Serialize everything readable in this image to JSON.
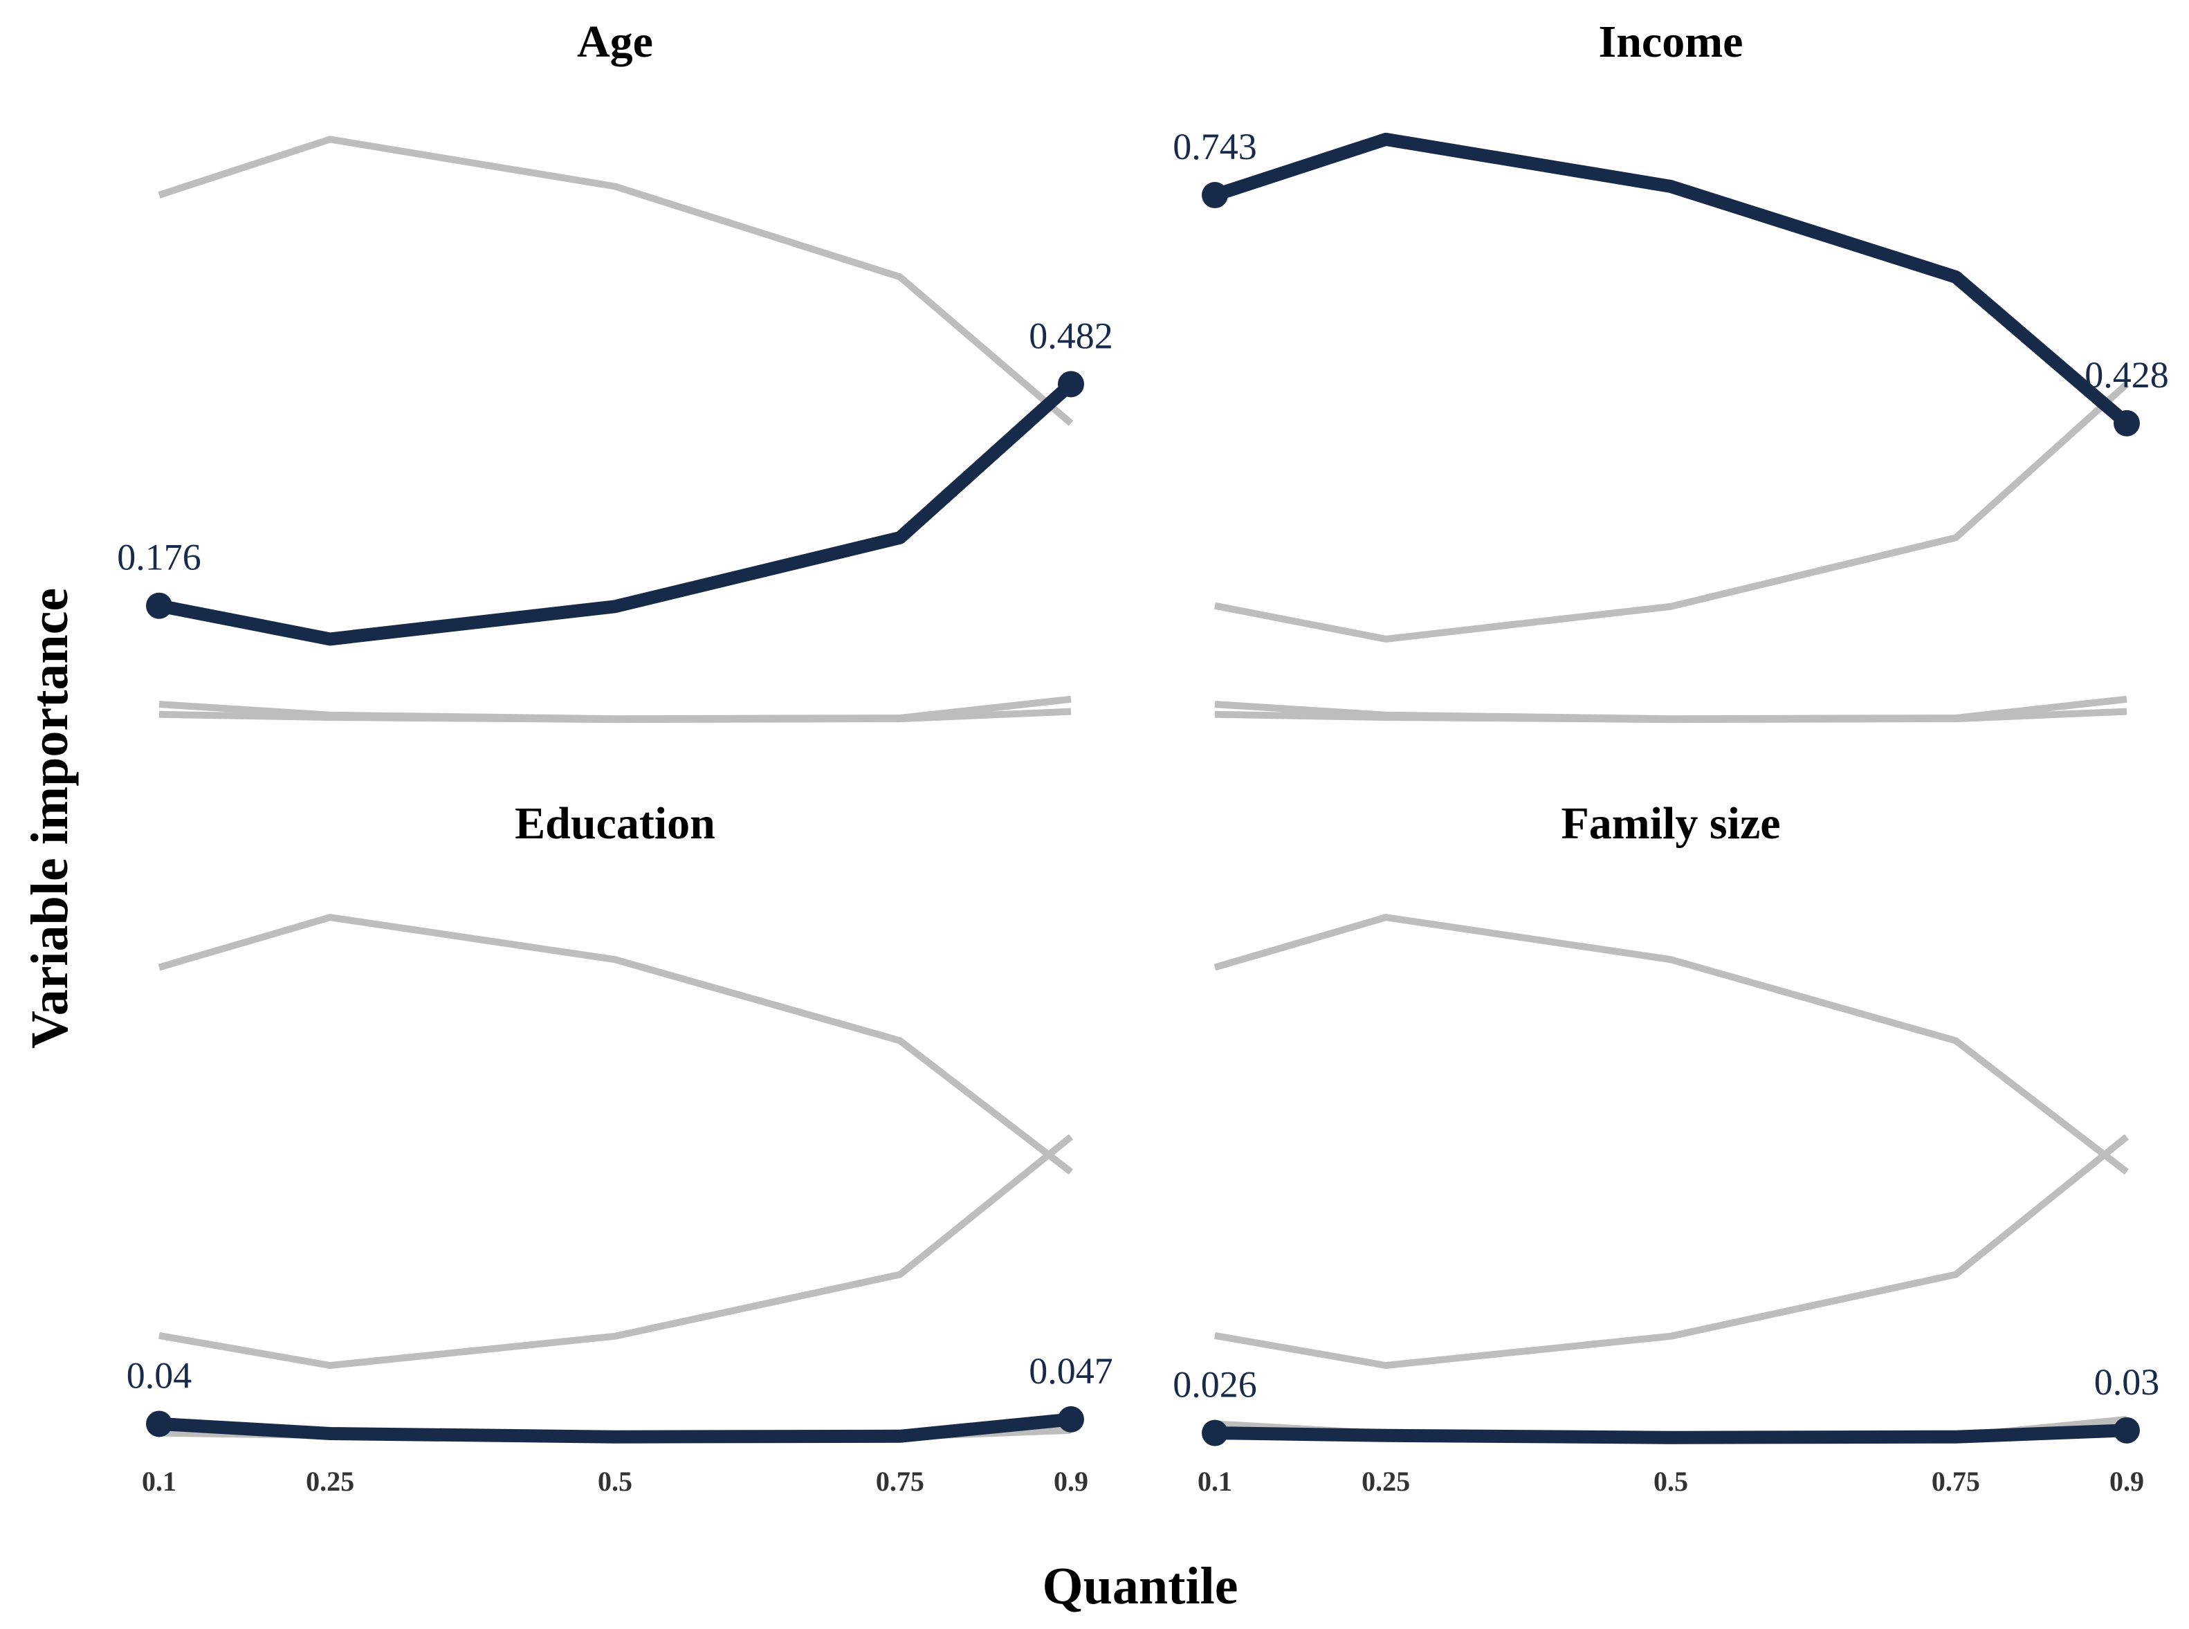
{
  "colors": {
    "highlight": "#172A4A",
    "context": "#BDBDBD",
    "background": "#FFFFFF"
  },
  "chart_data": {
    "type": "line",
    "layout": "small-multiples 2x2, each panel highlights one variable against the others in grey",
    "xlabel": "Quantile",
    "ylabel": "Variable importance",
    "x": [
      0.1,
      0.25,
      0.5,
      0.75,
      0.9
    ],
    "x_tick_labels": [
      "0.1",
      "0.25",
      "0.5",
      "0.75",
      "0.9"
    ],
    "ylim": [
      0,
      0.85
    ],
    "grid": false,
    "series": [
      {
        "name": "Age",
        "values": [
          0.176,
          0.13,
          0.175,
          0.27,
          0.482
        ],
        "start_label": "0.176",
        "end_label": "0.482"
      },
      {
        "name": "Income",
        "values": [
          0.743,
          0.82,
          0.755,
          0.63,
          0.428
        ],
        "start_label": "0.743",
        "end_label": "0.428"
      },
      {
        "name": "Education",
        "values": [
          0.04,
          0.025,
          0.02,
          0.021,
          0.047
        ],
        "start_label": "0.04",
        "end_label": "0.047"
      },
      {
        "name": "Family size",
        "values": [
          0.026,
          0.022,
          0.019,
          0.02,
          0.03
        ],
        "start_label": "0.026",
        "end_label": "0.03"
      }
    ]
  }
}
